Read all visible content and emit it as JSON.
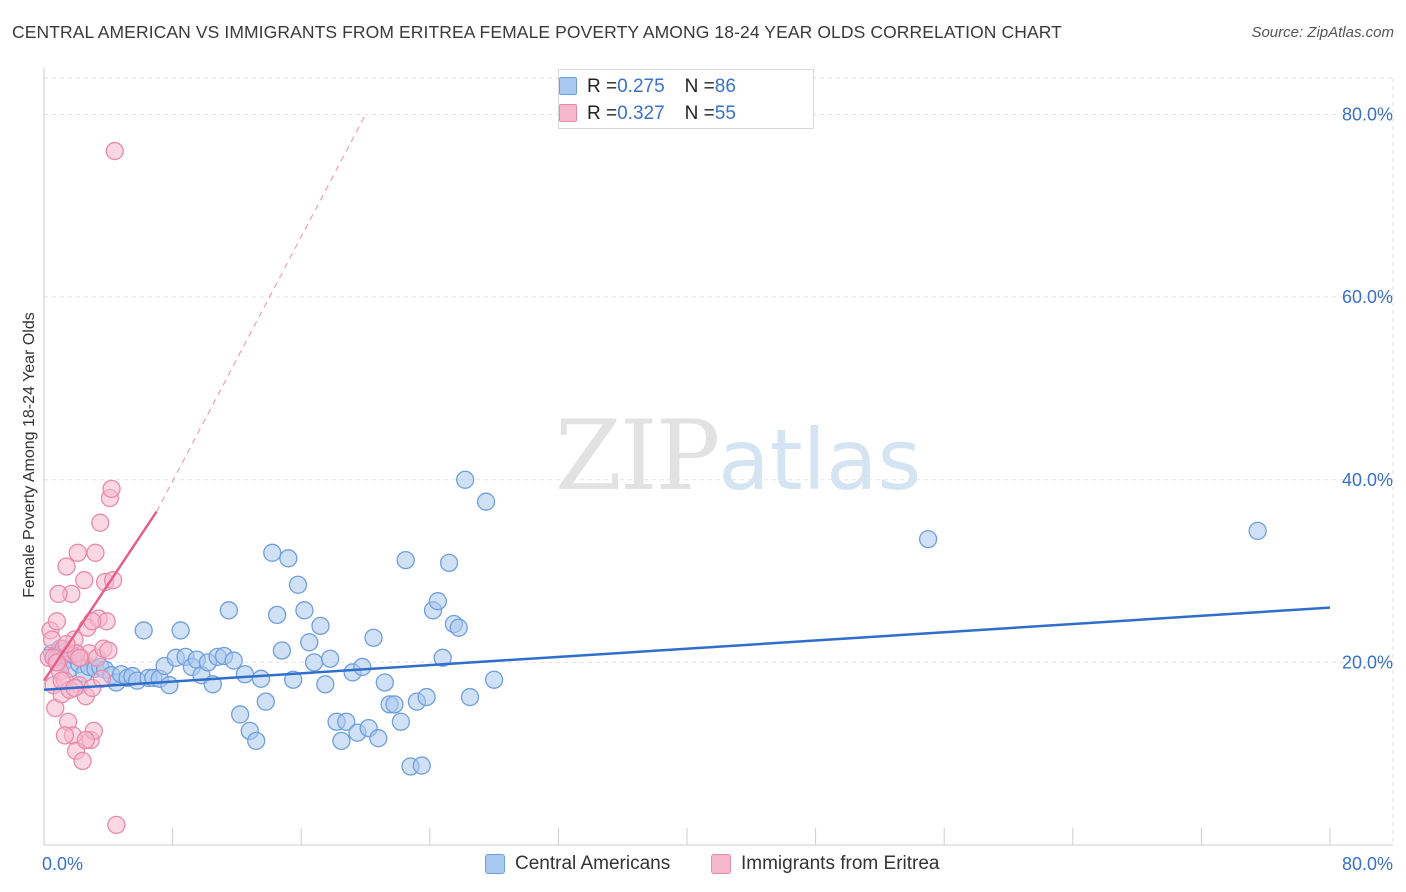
{
  "title": "CENTRAL AMERICAN VS IMMIGRANTS FROM ERITREA FEMALE POVERTY AMONG 18-24 YEAR OLDS CORRELATION CHART",
  "source": "Source: ZipAtlas.com",
  "watermark": {
    "zip": "ZIP",
    "atlas": "atlas"
  },
  "legend_top": [
    {
      "r_label": "R = ",
      "r_value": "0.275",
      "n_label": "N = ",
      "n_value": "86"
    },
    {
      "r_label": "R = ",
      "r_value": "0.327",
      "n_label": "N = ",
      "n_value": "55"
    }
  ],
  "colors": {
    "blue_fill": "#a9c8ef",
    "blue_stroke": "#6f9fdd",
    "blue_line": "#2f6fcb",
    "pink_fill": "#f6b8cc",
    "pink_stroke": "#e98aa9",
    "pink_line": "#e3608a",
    "axis_text": "#3a70c8",
    "grid": "#e2e2e2"
  },
  "chart_data": {
    "type": "scatter",
    "title": "CENTRAL AMERICAN VS IMMIGRANTS FROM ERITREA FEMALE POVERTY AMONG 18-24 YEAR OLDS CORRELATION CHART",
    "xlabel": "",
    "ylabel": "Female Poverty Among 18-24 Year Olds",
    "xlim": [
      0,
      80
    ],
    "ylim": [
      0,
      84
    ],
    "x_tick_labels": [
      "0.0%",
      "80.0%"
    ],
    "y_ticks": [
      20,
      40,
      60,
      80
    ],
    "y_tick_labels": [
      "20.0%",
      "40.0%",
      "60.0%",
      "80.0%"
    ],
    "series": [
      {
        "name": "Central Americans",
        "r": 0.275,
        "n": 86,
        "trend": {
          "x": [
            0,
            80
          ],
          "y": [
            17.0,
            26.0
          ],
          "dashed_extension": false
        },
        "points": [
          [
            0.5,
            21.0
          ],
          [
            0.8,
            20.5
          ],
          [
            1.0,
            21.5
          ],
          [
            1.2,
            20.0
          ],
          [
            1.4,
            21.2
          ],
          [
            1.6,
            19.3
          ],
          [
            1.8,
            20.8
          ],
          [
            2.0,
            21.0
          ],
          [
            2.2,
            19.8
          ],
          [
            2.5,
            18.8
          ],
          [
            2.8,
            19.5
          ],
          [
            3.2,
            19.3
          ],
          [
            3.5,
            19.5
          ],
          [
            3.8,
            19.2
          ],
          [
            4.2,
            18.6
          ],
          [
            4.5,
            17.8
          ],
          [
            4.8,
            18.7
          ],
          [
            5.2,
            18.3
          ],
          [
            5.5,
            18.5
          ],
          [
            5.8,
            18.0
          ],
          [
            6.2,
            23.5
          ],
          [
            6.5,
            18.3
          ],
          [
            6.8,
            18.3
          ],
          [
            7.2,
            18.2
          ],
          [
            7.5,
            19.6
          ],
          [
            7.8,
            17.5
          ],
          [
            8.2,
            20.5
          ],
          [
            8.5,
            23.5
          ],
          [
            8.8,
            20.6
          ],
          [
            9.2,
            19.5
          ],
          [
            9.5,
            20.3
          ],
          [
            9.8,
            18.6
          ],
          [
            10.2,
            20.0
          ],
          [
            10.5,
            17.6
          ],
          [
            10.8,
            20.6
          ],
          [
            11.2,
            20.7
          ],
          [
            11.5,
            25.7
          ],
          [
            11.8,
            20.2
          ],
          [
            12.2,
            14.3
          ],
          [
            12.5,
            18.7
          ],
          [
            12.8,
            12.5
          ],
          [
            13.2,
            11.4
          ],
          [
            13.5,
            18.2
          ],
          [
            13.8,
            15.7
          ],
          [
            14.2,
            32.0
          ],
          [
            14.5,
            25.2
          ],
          [
            14.8,
            21.3
          ],
          [
            15.2,
            31.4
          ],
          [
            15.5,
            18.1
          ],
          [
            15.8,
            28.5
          ],
          [
            16.2,
            25.7
          ],
          [
            16.5,
            22.2
          ],
          [
            16.8,
            20.0
          ],
          [
            17.2,
            24.0
          ],
          [
            17.5,
            17.6
          ],
          [
            17.8,
            20.4
          ],
          [
            18.2,
            13.5
          ],
          [
            18.5,
            11.4
          ],
          [
            18.8,
            13.5
          ],
          [
            19.2,
            18.9
          ],
          [
            19.5,
            12.3
          ],
          [
            19.8,
            19.5
          ],
          [
            20.2,
            12.8
          ],
          [
            20.5,
            22.7
          ],
          [
            20.8,
            11.7
          ],
          [
            21.2,
            17.8
          ],
          [
            21.5,
            15.4
          ],
          [
            21.8,
            15.4
          ],
          [
            22.2,
            13.5
          ],
          [
            22.5,
            31.2
          ],
          [
            22.8,
            8.6
          ],
          [
            23.2,
            15.7
          ],
          [
            23.5,
            8.7
          ],
          [
            23.8,
            16.2
          ],
          [
            24.2,
            25.7
          ],
          [
            24.5,
            26.7
          ],
          [
            24.8,
            20.5
          ],
          [
            25.2,
            30.9
          ],
          [
            25.5,
            24.2
          ],
          [
            25.8,
            23.8
          ],
          [
            26.2,
            40.0
          ],
          [
            26.5,
            16.2
          ],
          [
            27.5,
            37.6
          ],
          [
            28.0,
            18.1
          ],
          [
            55.0,
            33.5
          ],
          [
            75.5,
            34.4
          ]
        ]
      },
      {
        "name": "Immigrants from Eritrea",
        "r": 0.327,
        "n": 55,
        "trend": {
          "x": [
            0,
            7
          ],
          "y": [
            18.0,
            36.5
          ],
          "dashed_extension": true,
          "dashed_to": [
            20,
            80
          ]
        },
        "points": [
          [
            0.3,
            20.5
          ],
          [
            0.4,
            23.5
          ],
          [
            0.5,
            22.5
          ],
          [
            0.6,
            17.5
          ],
          [
            0.7,
            15.0
          ],
          [
            0.8,
            24.5
          ],
          [
            0.9,
            20.0
          ],
          [
            1.0,
            19.0
          ],
          [
            1.1,
            16.5
          ],
          [
            1.2,
            21.5
          ],
          [
            1.3,
            18.0
          ],
          [
            1.4,
            30.5
          ],
          [
            1.5,
            13.5
          ],
          [
            1.6,
            21.0
          ],
          [
            1.7,
            27.5
          ],
          [
            1.8,
            12.0
          ],
          [
            1.9,
            22.5
          ],
          [
            2.0,
            10.3
          ],
          [
            2.1,
            32.0
          ],
          [
            2.2,
            17.5
          ],
          [
            2.3,
            20.5
          ],
          [
            2.4,
            9.2
          ],
          [
            2.5,
            29.0
          ],
          [
            2.6,
            16.3
          ],
          [
            2.7,
            23.8
          ],
          [
            2.8,
            21.0
          ],
          [
            2.9,
            11.5
          ],
          [
            3.0,
            17.2
          ],
          [
            3.1,
            12.5
          ],
          [
            3.2,
            32.0
          ],
          [
            3.3,
            20.5
          ],
          [
            3.4,
            24.8
          ],
          [
            3.5,
            35.3
          ],
          [
            3.6,
            18.2
          ],
          [
            3.7,
            21.5
          ],
          [
            3.8,
            28.8
          ],
          [
            3.9,
            24.5
          ],
          [
            4.0,
            21.3
          ],
          [
            4.1,
            38.0
          ],
          [
            4.2,
            39.0
          ],
          [
            4.3,
            29.0
          ],
          [
            4.4,
            76.0
          ],
          [
            4.5,
            2.2
          ],
          [
            0.9,
            27.5
          ],
          [
            1.3,
            12.0
          ],
          [
            1.6,
            17.0
          ],
          [
            2.0,
            21.0
          ],
          [
            2.6,
            11.5
          ],
          [
            0.6,
            20.5
          ],
          [
            1.1,
            18.0
          ],
          [
            1.9,
            17.2
          ],
          [
            0.8,
            20.0
          ],
          [
            1.4,
            22.0
          ],
          [
            2.2,
            20.5
          ],
          [
            3.0,
            24.5
          ]
        ]
      }
    ]
  },
  "legend_bottom": [
    "Central Americans",
    "Immigrants from Eritrea"
  ]
}
